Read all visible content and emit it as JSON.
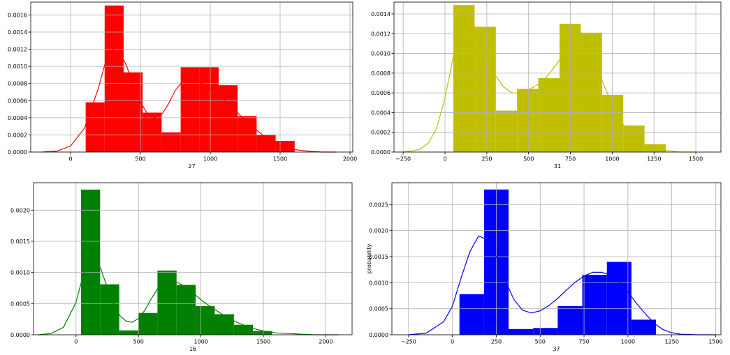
{
  "chart_data": [
    {
      "type": "bar",
      "color": "#ff0000",
      "xlabel": "27",
      "ylabel": "",
      "xlim": [
        -285,
        2020
      ],
      "ylim": [
        0,
        0.00175
      ],
      "xticks": [
        0,
        500,
        1000,
        1500,
        2000
      ],
      "xtick_labels": [
        "0",
        "500",
        "1000",
        "1500",
        "2000"
      ],
      "yticks": [
        0,
        0.0002,
        0.0004,
        0.0006,
        0.0008,
        0.001,
        0.0012,
        0.0014,
        0.0016
      ],
      "ytick_labels": [
        "0.0000",
        "0.0002",
        "0.0004",
        "0.0006",
        "0.0008",
        "0.0010",
        "0.0012",
        "0.0014",
        "0.0016"
      ],
      "grid": true,
      "bins": [
        {
          "x0": 108,
          "x1": 244,
          "value": 0.00058
        },
        {
          "x0": 244,
          "x1": 380,
          "value": 0.00171
        },
        {
          "x0": 380,
          "x1": 516,
          "value": 0.00093
        },
        {
          "x0": 516,
          "x1": 652,
          "value": 0.00046
        },
        {
          "x0": 652,
          "x1": 788,
          "value": 0.00023
        },
        {
          "x0": 788,
          "x1": 924,
          "value": 0.00099
        },
        {
          "x0": 924,
          "x1": 1060,
          "value": 0.00099
        },
        {
          "x0": 1060,
          "x1": 1196,
          "value": 0.00078
        },
        {
          "x0": 1196,
          "x1": 1332,
          "value": 0.00042
        },
        {
          "x0": 1332,
          "x1": 1468,
          "value": 0.0002
        },
        {
          "x0": 1468,
          "x1": 1604,
          "value": 0.00013
        }
      ],
      "kde": {
        "x": [
          -200,
          -100,
          0,
          100,
          200,
          250,
          300,
          350,
          400,
          450,
          500,
          550,
          600,
          650,
          700,
          750,
          800,
          850,
          900,
          950,
          1000,
          1050,
          1100,
          1150,
          1200,
          1250,
          1300,
          1350,
          1400,
          1450,
          1500,
          1550,
          1600,
          1700,
          1800,
          1900
        ],
        "y": [
          0.0,
          1e-05,
          7e-05,
          0.00028,
          0.00075,
          0.00105,
          0.0012,
          0.00117,
          0.00101,
          0.00078,
          0.00058,
          0.00045,
          0.0004,
          0.00043,
          0.00056,
          0.00072,
          0.00082,
          0.00085,
          0.00083,
          0.00079,
          0.00074,
          0.00068,
          0.00061,
          0.00053,
          0.00045,
          0.00037,
          0.0003,
          0.00023,
          0.00017,
          0.00012,
          8e-05,
          5e-05,
          3e-05,
          1e-05,
          0.0,
          0.0
        ]
      }
    },
    {
      "type": "bar",
      "color": "#bfbf00",
      "xlabel": "31",
      "ylabel": "",
      "xlim": [
        -305,
        1650
      ],
      "ylim": [
        0,
        0.00152
      ],
      "xticks": [
        -250,
        0,
        250,
        500,
        750,
        1000,
        1250,
        1500
      ],
      "xtick_labels": [
        "−250",
        "0",
        "250",
        "500",
        "750",
        "1000",
        "1250",
        "1500"
      ],
      "yticks": [
        0,
        0.0002,
        0.0004,
        0.0006,
        0.0008,
        0.001,
        0.0012,
        0.0014
      ],
      "ytick_labels": [
        "0.0000",
        "0.0002",
        "0.0004",
        "0.0006",
        "0.0008",
        "0.0010",
        "0.0012",
        "0.0014"
      ],
      "grid": true,
      "bins": [
        {
          "x0": 50,
          "x1": 177,
          "value": 0.00149
        },
        {
          "x0": 177,
          "x1": 304,
          "value": 0.00127
        },
        {
          "x0": 304,
          "x1": 431,
          "value": 0.00042
        },
        {
          "x0": 431,
          "x1": 558,
          "value": 0.00064
        },
        {
          "x0": 558,
          "x1": 685,
          "value": 0.00075
        },
        {
          "x0": 685,
          "x1": 812,
          "value": 0.0013
        },
        {
          "x0": 812,
          "x1": 939,
          "value": 0.00121
        },
        {
          "x0": 939,
          "x1": 1066,
          "value": 0.00058
        },
        {
          "x0": 1066,
          "x1": 1193,
          "value": 0.00027
        },
        {
          "x0": 1193,
          "x1": 1320,
          "value": 8e-05
        }
      ],
      "kde": {
        "x": [
          -250,
          -200,
          -150,
          -100,
          -50,
          0,
          50,
          100,
          150,
          200,
          250,
          300,
          350,
          400,
          450,
          500,
          550,
          600,
          650,
          700,
          750,
          800,
          850,
          900,
          950,
          1000,
          1050,
          1100,
          1150,
          1200,
          1250,
          1300,
          1350,
          1400,
          1450,
          1500
        ],
        "y": [
          0.0,
          1e-05,
          3e-05,
          9e-05,
          0.00024,
          0.00055,
          0.00097,
          0.0013,
          0.00134,
          0.0012,
          0.00097,
          0.00078,
          0.00066,
          0.0006,
          0.0006,
          0.00063,
          0.00068,
          0.00075,
          0.00085,
          0.00097,
          0.00107,
          0.00111,
          0.00105,
          0.00089,
          0.00068,
          0.00048,
          0.00032,
          0.0002,
          0.00012,
          7e-05,
          4e-05,
          2e-05,
          1e-05,
          0.0,
          0.0,
          0.0
        ]
      }
    },
    {
      "type": "bar",
      "color": "#008000",
      "xlabel": "16",
      "ylabel": "",
      "xlim": [
        -340,
        2210
      ],
      "ylim": [
        0,
        0.00244
      ],
      "xticks": [
        0,
        500,
        1000,
        1500,
        2000
      ],
      "xtick_labels": [
        "0",
        "500",
        "1000",
        "1500",
        "2000"
      ],
      "yticks": [
        0,
        0.0005,
        0.001,
        0.0015,
        0.002
      ],
      "ytick_labels": [
        "0.0000",
        "0.0005",
        "0.0010",
        "0.0015",
        "0.0020"
      ],
      "grid": true,
      "bins": [
        {
          "x0": 40,
          "x1": 193,
          "value": 0.00233
        },
        {
          "x0": 193,
          "x1": 346,
          "value": 0.00081
        },
        {
          "x0": 346,
          "x1": 499,
          "value": 7e-05
        },
        {
          "x0": 499,
          "x1": 652,
          "value": 0.00035
        },
        {
          "x0": 652,
          "x1": 805,
          "value": 0.00103
        },
        {
          "x0": 805,
          "x1": 958,
          "value": 0.0008
        },
        {
          "x0": 958,
          "x1": 1111,
          "value": 0.00046
        },
        {
          "x0": 1111,
          "x1": 1264,
          "value": 0.00033
        },
        {
          "x0": 1264,
          "x1": 1417,
          "value": 0.00016
        },
        {
          "x0": 1417,
          "x1": 1570,
          "value": 6e-05
        }
      ],
      "kde": {
        "x": [
          -300,
          -200,
          -100,
          0,
          50,
          100,
          150,
          200,
          250,
          300,
          350,
          400,
          450,
          500,
          550,
          600,
          650,
          700,
          750,
          800,
          850,
          900,
          950,
          1000,
          1100,
          1200,
          1300,
          1400,
          1500,
          1600,
          1700,
          1800,
          1900,
          2000,
          2100
        ],
        "y": [
          0.0,
          2e-05,
          0.00012,
          0.00052,
          0.0009,
          0.00122,
          0.00125,
          0.00105,
          0.00076,
          0.00049,
          0.00031,
          0.00022,
          0.0002,
          0.00026,
          0.00039,
          0.00057,
          0.00073,
          0.00083,
          0.00086,
          0.00085,
          0.0008,
          0.00073,
          0.00065,
          0.00056,
          0.00042,
          0.00029,
          0.00019,
          0.00011,
          6e-05,
          3e-05,
          2e-05,
          1e-05,
          0.0,
          0.0,
          0.0
        ]
      }
    },
    {
      "type": "bar",
      "color": "#0000ff",
      "xlabel": "37",
      "ylabel": "probability",
      "xlim": [
        -345,
        1530
      ],
      "ylim": [
        0,
        0.00292
      ],
      "xticks": [
        -250,
        0,
        250,
        500,
        750,
        1000,
        1250,
        1500
      ],
      "xtick_labels": [
        "−250",
        "0",
        "250",
        "500",
        "750",
        "1000",
        "1250",
        "1500"
      ],
      "yticks": [
        0,
        0.0005,
        0.001,
        0.0015,
        0.002,
        0.0025
      ],
      "ytick_labels": [
        "0.0000",
        "0.0005",
        "0.0010",
        "0.0015",
        "0.0020",
        "0.0025"
      ],
      "grid": true,
      "bins": [
        {
          "x0": 40,
          "x1": 180,
          "value": 0.00078
        },
        {
          "x0": 180,
          "x1": 320,
          "value": 0.00279
        },
        {
          "x0": 320,
          "x1": 460,
          "value": 0.00011
        },
        {
          "x0": 460,
          "x1": 600,
          "value": 0.00013
        },
        {
          "x0": 600,
          "x1": 740,
          "value": 0.00055
        },
        {
          "x0": 740,
          "x1": 880,
          "value": 0.00115
        },
        {
          "x0": 880,
          "x1": 1020,
          "value": 0.0014
        },
        {
          "x0": 1020,
          "x1": 1160,
          "value": 0.00029
        }
      ],
      "kde": {
        "x": [
          -250,
          -150,
          -50,
          0,
          50,
          100,
          150,
          200,
          250,
          300,
          350,
          400,
          450,
          500,
          550,
          600,
          650,
          700,
          750,
          800,
          850,
          900,
          950,
          1000,
          1050,
          1100,
          1150,
          1200,
          1250,
          1300,
          1400,
          1500
        ],
        "y": [
          0.0,
          3e-05,
          0.00025,
          0.00055,
          0.0011,
          0.0016,
          0.0019,
          0.00182,
          0.0015,
          0.00105,
          0.00068,
          0.00047,
          0.00042,
          0.00046,
          0.00056,
          0.0007,
          0.00086,
          0.00101,
          0.00113,
          0.0012,
          0.0012,
          0.00115,
          0.00102,
          0.00082,
          0.0006,
          0.0004,
          0.00022,
          0.0001,
          4e-05,
          1e-05,
          0.0,
          0.0
        ]
      }
    }
  ]
}
